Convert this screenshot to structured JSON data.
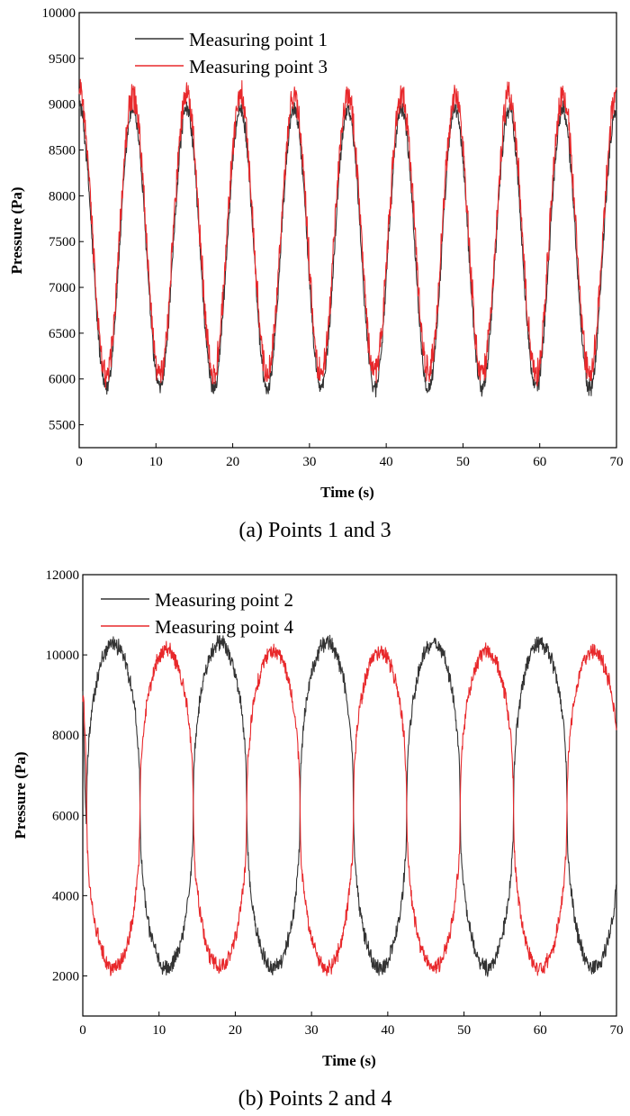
{
  "chart_data": [
    {
      "type": "line",
      "caption": "(a) Points 1 and 3",
      "xlabel": "Time (s)",
      "ylabel": "Pressure (Pa)",
      "xlim": [
        0,
        70
      ],
      "ylim": [
        5250,
        10000
      ],
      "xticks": [
        "0",
        "10",
        "20",
        "30",
        "40",
        "50",
        "60",
        "70"
      ],
      "yticks": [
        "5500",
        "6000",
        "6500",
        "7000",
        "7500",
        "8000",
        "8500",
        "9000",
        "9500",
        "10000"
      ],
      "legend_position": "top-left",
      "series": [
        {
          "name": "Measuring point 1",
          "color": "#333333",
          "period": 7.0,
          "phase": 0.0,
          "min": 5900,
          "max": 8950,
          "start": 9000,
          "noise": 120
        },
        {
          "name": "Measuring point 3",
          "color": "#e8282b",
          "period": 7.0,
          "phase": 0.0,
          "min": 6050,
          "max": 9100,
          "start": 9250,
          "noise": 200
        }
      ]
    },
    {
      "type": "line",
      "caption": "(b) Points 2 and 4",
      "xlabel": "Time (s)",
      "ylabel": "Pressure (Pa)",
      "xlim": [
        0,
        70
      ],
      "ylim": [
        1000,
        12000
      ],
      "xticks": [
        "0",
        "10",
        "20",
        "30",
        "40",
        "50",
        "60",
        "70"
      ],
      "yticks": [
        "2000",
        "4000",
        "6000",
        "8000",
        "10000",
        "12000"
      ],
      "legend_position": "top-left",
      "series": [
        {
          "name": "Measuring point 2",
          "color": "#333333",
          "period": 14.0,
          "lowAt": 11.0,
          "min": 2200,
          "max": 10300,
          "start": 9200,
          "noise": 250
        },
        {
          "name": "Measuring point 4",
          "color": "#e8282b",
          "period": 14.0,
          "lowAt": 4.0,
          "min": 2200,
          "max": 10100,
          "start": 9000,
          "noise": 250
        }
      ]
    }
  ]
}
